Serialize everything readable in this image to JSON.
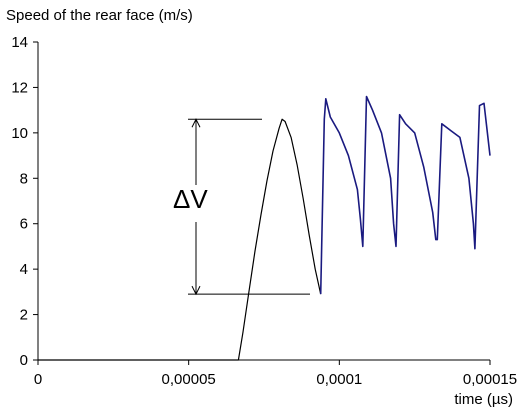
{
  "chart_data": {
    "type": "line",
    "title": "",
    "ylabel": "Speed of the rear face (m/s)",
    "xlabel": "time (µs)",
    "xlim": [
      0,
      0.00015
    ],
    "ylim": [
      0,
      14
    ],
    "x_ticks": [
      0,
      5e-05,
      0.0001,
      0.00015
    ],
    "x_tick_labels": [
      "0",
      "0,00005",
      "0,0001",
      "0,00015"
    ],
    "y_ticks": [
      0,
      2,
      4,
      6,
      8,
      10,
      12,
      14
    ],
    "y_tick_labels": [
      "0",
      "2",
      "4",
      "6",
      "8",
      "10",
      "12",
      "14"
    ],
    "grid": false,
    "legend": "none",
    "series": [
      {
        "color": "#000000",
        "x": [
          0,
          6.65e-05,
          6.8e-05,
          7e-05,
          7.2e-05,
          7.4e-05,
          7.6e-05,
          7.8e-05,
          8e-05,
          8.1e-05,
          8.2e-05,
          8.4e-05,
          8.6e-05,
          8.8e-05,
          9e-05,
          9.2e-05,
          9.38e-05
        ],
        "y": [
          0,
          0,
          1.2,
          3.0,
          4.8,
          6.4,
          7.9,
          9.2,
          10.2,
          10.6,
          10.5,
          9.8,
          8.6,
          7.1,
          5.5,
          4.0,
          2.9
        ]
      },
      {
        "color": "#1a1a80",
        "x": [
          9.38e-05,
          9.5e-05,
          9.55e-05,
          9.7e-05,
          0.0001,
          0.000103,
          0.000106,
          0.000107,
          0.0001078,
          0.000109,
          0.000111,
          0.000114,
          0.000117,
          0.000118,
          0.0001188,
          0.00012,
          0.000122,
          0.000125,
          0.000128,
          0.000131,
          0.000132,
          0.0001325,
          0.000134,
          0.000137,
          0.00014,
          0.000143,
          0.0001445,
          0.000145,
          0.0001465,
          0.000148,
          0.00015
        ],
        "y": [
          2.9,
          10.6,
          11.5,
          10.7,
          10.0,
          9.0,
          7.5,
          6.2,
          5.0,
          11.6,
          11.0,
          10.0,
          8.0,
          6.0,
          5.0,
          10.8,
          10.4,
          10.0,
          8.5,
          6.5,
          5.3,
          5.3,
          10.4,
          10.1,
          9.8,
          8.0,
          6.0,
          4.9,
          11.2,
          11.3,
          9.0
        ]
      }
    ],
    "annotations": [
      {
        "text": "ΔV",
        "from_y": 2.9,
        "to_y": 10.6
      }
    ]
  }
}
